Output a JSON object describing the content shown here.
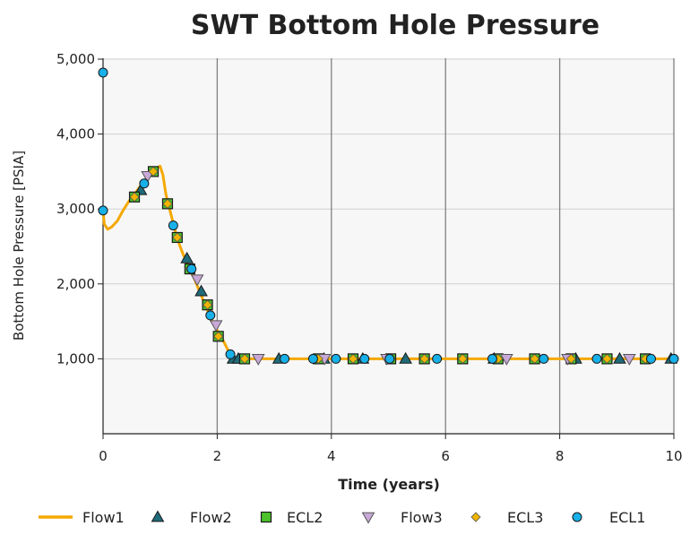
{
  "chart_data": {
    "type": "line",
    "title": "SWT Bottom Hole Pressure",
    "xlabel": "Time (years)",
    "ylabel": "Bottom Hole Pressure [PSIA]",
    "xlim": [
      0,
      10
    ],
    "ylim": [
      0,
      5000
    ],
    "xticks": [
      0,
      2,
      4,
      6,
      8,
      10
    ],
    "yticks": [
      1000,
      2000,
      3000,
      4000,
      5000
    ],
    "ytick_labels": [
      "1,000",
      "2,000",
      "3,000",
      "4,000",
      "5,000"
    ],
    "xtick_labels": [
      "0",
      "2",
      "4",
      "6",
      "8",
      "10"
    ],
    "grid": true,
    "legend_position": "bottom",
    "series": [
      {
        "name": "Flow1",
        "kind": "line",
        "color": "#f5a800",
        "x": [
          0.0,
          0.02,
          0.08,
          0.15,
          0.25,
          0.35,
          0.45,
          0.55,
          0.65,
          0.75,
          0.85,
          0.92,
          1.0,
          1.05,
          1.1,
          1.2,
          1.3,
          1.4,
          1.5,
          1.6,
          1.7,
          1.8,
          1.9,
          2.0,
          2.1,
          2.2,
          2.3,
          2.4,
          3.0,
          4.0,
          5.0,
          6.0,
          7.0,
          8.0,
          9.0,
          10.0
        ],
        "y": [
          3000,
          2800,
          2730,
          2760,
          2840,
          2980,
          3100,
          3200,
          3300,
          3400,
          3500,
          3540,
          3570,
          3450,
          3200,
          2900,
          2600,
          2400,
          2230,
          2070,
          1880,
          1700,
          1520,
          1380,
          1250,
          1100,
          1010,
          1000,
          1000,
          1000,
          1000,
          1000,
          1000,
          1000,
          1000,
          1000
        ]
      },
      {
        "name": "Flow2",
        "kind": "marker",
        "marker": "triangle-up",
        "color": "#1f6b7a",
        "x": [
          0.66,
          1.47,
          1.72,
          2.28,
          2.37,
          3.08,
          3.87,
          4.55,
          5.3,
          6.85,
          8.28,
          9.05,
          9.95
        ],
        "y": [
          3250,
          2340,
          1900,
          1000,
          1000,
          1000,
          1000,
          1000,
          1000,
          1000,
          1000,
          1000,
          1000
        ]
      },
      {
        "name": "ECL2",
        "kind": "marker",
        "marker": "square",
        "color": "#4cc22a",
        "x": [
          0.55,
          0.88,
          1.13,
          1.3,
          1.52,
          1.83,
          2.02,
          2.48,
          3.77,
          4.38,
          5.04,
          5.63,
          6.3,
          6.92,
          7.56,
          8.2,
          8.83,
          9.5
        ],
        "y": [
          3160,
          3500,
          3070,
          2620,
          2200,
          1720,
          1300,
          1000,
          1000,
          1000,
          1000,
          1000,
          1000,
          1000,
          1000,
          1000,
          1000,
          1000
        ]
      },
      {
        "name": "Flow3",
        "kind": "marker",
        "marker": "triangle-down",
        "color": "#c8a8d6",
        "x": [
          0.78,
          1.65,
          1.98,
          2.72,
          3.88,
          4.97,
          7.07,
          8.14,
          9.22
        ],
        "y": [
          3440,
          2060,
          1450,
          1000,
          1000,
          1000,
          1000,
          1000,
          1000
        ]
      },
      {
        "name": "ECL3",
        "kind": "marker",
        "marker": "diamond",
        "color": "#f0b400",
        "x": [
          0.55,
          0.88,
          1.13,
          1.3,
          1.52,
          1.83,
          2.02,
          2.48,
          3.77,
          4.38,
          5.04,
          5.63,
          6.3,
          6.92,
          7.56,
          8.2,
          8.83,
          9.5
        ],
        "y": [
          3160,
          3500,
          3070,
          2620,
          2200,
          1720,
          1300,
          1000,
          1000,
          1000,
          1000,
          1000,
          1000,
          1000,
          1000,
          1000,
          1000,
          1000
        ]
      },
      {
        "name": "ECL1",
        "kind": "marker",
        "marker": "circle",
        "color": "#18b0e8",
        "x": [
          0.0,
          0.0,
          0.72,
          1.23,
          1.55,
          1.88,
          2.23,
          3.18,
          3.68,
          4.08,
          4.58,
          5.02,
          5.85,
          6.82,
          7.72,
          8.65,
          9.6,
          10.0
        ],
        "y": [
          4820,
          2980,
          3340,
          2780,
          2200,
          1580,
          1060,
          1000,
          1000,
          1000,
          1000,
          1000,
          1000,
          1000,
          1000,
          1000,
          1000,
          1000
        ]
      }
    ]
  }
}
